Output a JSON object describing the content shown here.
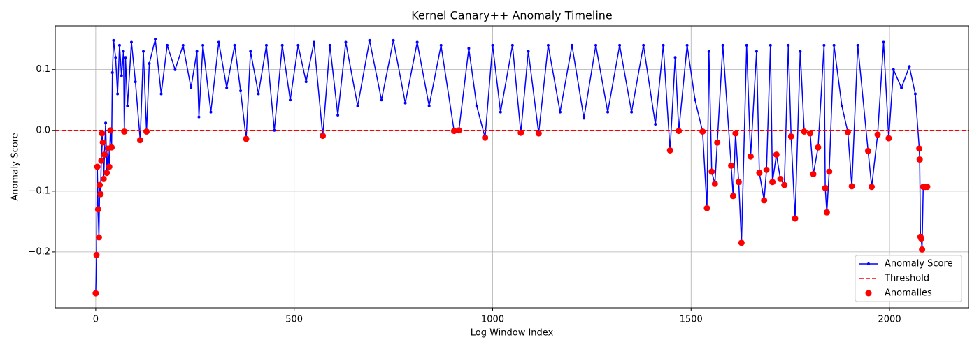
{
  "chart_data": {
    "type": "line",
    "title": "Kernel Canary++ Anomaly Timeline",
    "x_label": "Log Window Index",
    "y_label": "Anomaly Score",
    "xlim": [
      -102,
      2199
    ],
    "ylim": [
      -0.292,
      0.172
    ],
    "xticks": [
      0,
      500,
      1000,
      1500,
      2000
    ],
    "yticks": [
      {
        "value": -0.2,
        "label": "−0.2"
      },
      {
        "value": -0.1,
        "label": "−0.1"
      },
      {
        "value": 0,
        "label": "0.0"
      },
      {
        "value": 0.1,
        "label": "0.1"
      }
    ],
    "grid": true,
    "legend": "lower right",
    "series": [
      {
        "name": "Anomaly Score",
        "color": "#0000ff",
        "x": [
          0,
          2,
          4,
          6,
          8,
          10,
          12,
          14,
          16,
          18,
          20,
          22,
          25,
          28,
          31,
          34,
          37,
          40,
          42,
          45,
          50,
          55,
          60,
          65,
          70,
          72,
          75,
          80,
          90,
          100,
          112,
          120,
          128,
          135,
          150,
          165,
          180,
          200,
          220,
          240,
          255,
          260,
          270,
          290,
          310,
          330,
          350,
          365,
          379,
          390,
          410,
          430,
          450,
          470,
          490,
          510,
          530,
          550,
          572,
          590,
          610,
          630,
          660,
          690,
          720,
          750,
          780,
          810,
          840,
          870,
          903,
          915,
          940,
          960,
          981,
          1000,
          1020,
          1050,
          1071,
          1090,
          1116,
          1140,
          1170,
          1200,
          1230,
          1260,
          1290,
          1320,
          1350,
          1380,
          1410,
          1430,
          1447,
          1460,
          1469,
          1490,
          1510,
          1529,
          1540,
          1545,
          1552,
          1560,
          1566,
          1580,
          1601,
          1606,
          1612,
          1620,
          1627,
          1640,
          1650,
          1665,
          1672,
          1684,
          1690,
          1700,
          1705,
          1715,
          1725,
          1735,
          1745,
          1752,
          1762,
          1775,
          1785,
          1800,
          1808,
          1820,
          1835,
          1838,
          1842,
          1848,
          1860,
          1880,
          1895,
          1905,
          1920,
          1946,
          1955,
          1970,
          1985,
          1998,
          2010,
          2030,
          2050,
          2065,
          2075,
          2076,
          2078,
          2080,
          2082,
          2085,
          2090,
          2095
        ],
        "values": [
          -0.268,
          -0.205,
          -0.06,
          -0.13,
          -0.176,
          -0.09,
          -0.105,
          -0.05,
          -0.005,
          -0.02,
          -0.08,
          -0.04,
          0.012,
          -0.07,
          -0.03,
          -0.06,
          0.0,
          -0.028,
          0.095,
          0.148,
          0.12,
          0.06,
          0.14,
          0.09,
          0.13,
          -0.002,
          0.12,
          0.04,
          0.145,
          0.08,
          -0.016,
          0.13,
          -0.002,
          0.11,
          0.15,
          0.06,
          0.14,
          0.1,
          0.14,
          0.07,
          0.13,
          0.022,
          0.14,
          0.03,
          0.145,
          0.07,
          0.14,
          0.065,
          -0.014,
          0.13,
          0.06,
          0.14,
          0.0,
          0.14,
          0.05,
          0.14,
          0.08,
          0.145,
          -0.009,
          0.14,
          0.025,
          0.145,
          0.04,
          0.148,
          0.05,
          0.148,
          0.045,
          0.145,
          0.04,
          0.14,
          -0.001,
          0.0,
          0.135,
          0.04,
          -0.012,
          0.14,
          0.03,
          0.14,
          -0.004,
          0.13,
          -0.005,
          0.14,
          0.03,
          0.14,
          0.02,
          0.14,
          0.03,
          0.14,
          0.03,
          0.14,
          0.01,
          0.14,
          -0.033,
          0.12,
          -0.001,
          0.14,
          0.05,
          -0.002,
          -0.128,
          0.13,
          -0.068,
          -0.088,
          -0.02,
          0.14,
          -0.058,
          -0.108,
          -0.005,
          -0.085,
          -0.185,
          0.14,
          -0.043,
          0.13,
          -0.07,
          -0.115,
          -0.065,
          0.14,
          -0.085,
          -0.04,
          -0.08,
          -0.09,
          0.14,
          -0.01,
          -0.145,
          0.13,
          -0.002,
          -0.005,
          -0.072,
          -0.028,
          0.14,
          -0.095,
          -0.135,
          -0.068,
          0.14,
          0.04,
          -0.003,
          -0.092,
          0.14,
          -0.034,
          -0.093,
          -0.007,
          0.145,
          -0.013,
          0.1,
          0.07,
          0.105,
          0.06,
          -0.03,
          -0.048,
          -0.175,
          -0.178,
          -0.196,
          -0.093,
          -0.093,
          -0.093
        ]
      },
      {
        "name": "Threshold",
        "color": "#ff0000",
        "kind": "hline",
        "value": 0
      },
      {
        "name": "Anomalies",
        "color": "#ff0000",
        "kind": "scatter",
        "x": [
          0,
          2,
          4,
          6,
          8,
          10,
          12,
          14,
          16,
          18,
          20,
          22,
          28,
          31,
          34,
          37,
          40,
          72,
          112,
          128,
          379,
          572,
          903,
          915,
          981,
          1071,
          1116,
          1447,
          1469,
          1529,
          1540,
          1552,
          1560,
          1566,
          1601,
          1606,
          1612,
          1620,
          1627,
          1650,
          1672,
          1684,
          1690,
          1705,
          1715,
          1725,
          1735,
          1752,
          1762,
          1785,
          1800,
          1808,
          1820,
          1838,
          1842,
          1848,
          1895,
          1905,
          1946,
          1955,
          1970,
          1998,
          2075,
          2076,
          2078,
          2080,
          2082,
          2085,
          2090,
          2095
        ],
        "values": [
          -0.268,
          -0.205,
          -0.06,
          -0.13,
          -0.176,
          -0.09,
          -0.105,
          -0.05,
          -0.005,
          -0.02,
          -0.08,
          -0.04,
          -0.07,
          -0.03,
          -0.06,
          0.0,
          -0.028,
          -0.002,
          -0.016,
          -0.002,
          -0.014,
          -0.009,
          -0.001,
          0.0,
          -0.012,
          -0.004,
          -0.005,
          -0.033,
          -0.001,
          -0.002,
          -0.128,
          -0.068,
          -0.088,
          -0.02,
          -0.058,
          -0.108,
          -0.005,
          -0.085,
          -0.185,
          -0.043,
          -0.07,
          -0.115,
          -0.065,
          -0.085,
          -0.04,
          -0.08,
          -0.09,
          -0.01,
          -0.145,
          -0.002,
          -0.005,
          -0.072,
          -0.028,
          -0.095,
          -0.135,
          -0.068,
          -0.003,
          -0.092,
          -0.034,
          -0.093,
          -0.007,
          -0.013,
          -0.03,
          -0.048,
          -0.175,
          -0.178,
          -0.196,
          -0.093,
          -0.093,
          -0.093
        ]
      }
    ]
  }
}
